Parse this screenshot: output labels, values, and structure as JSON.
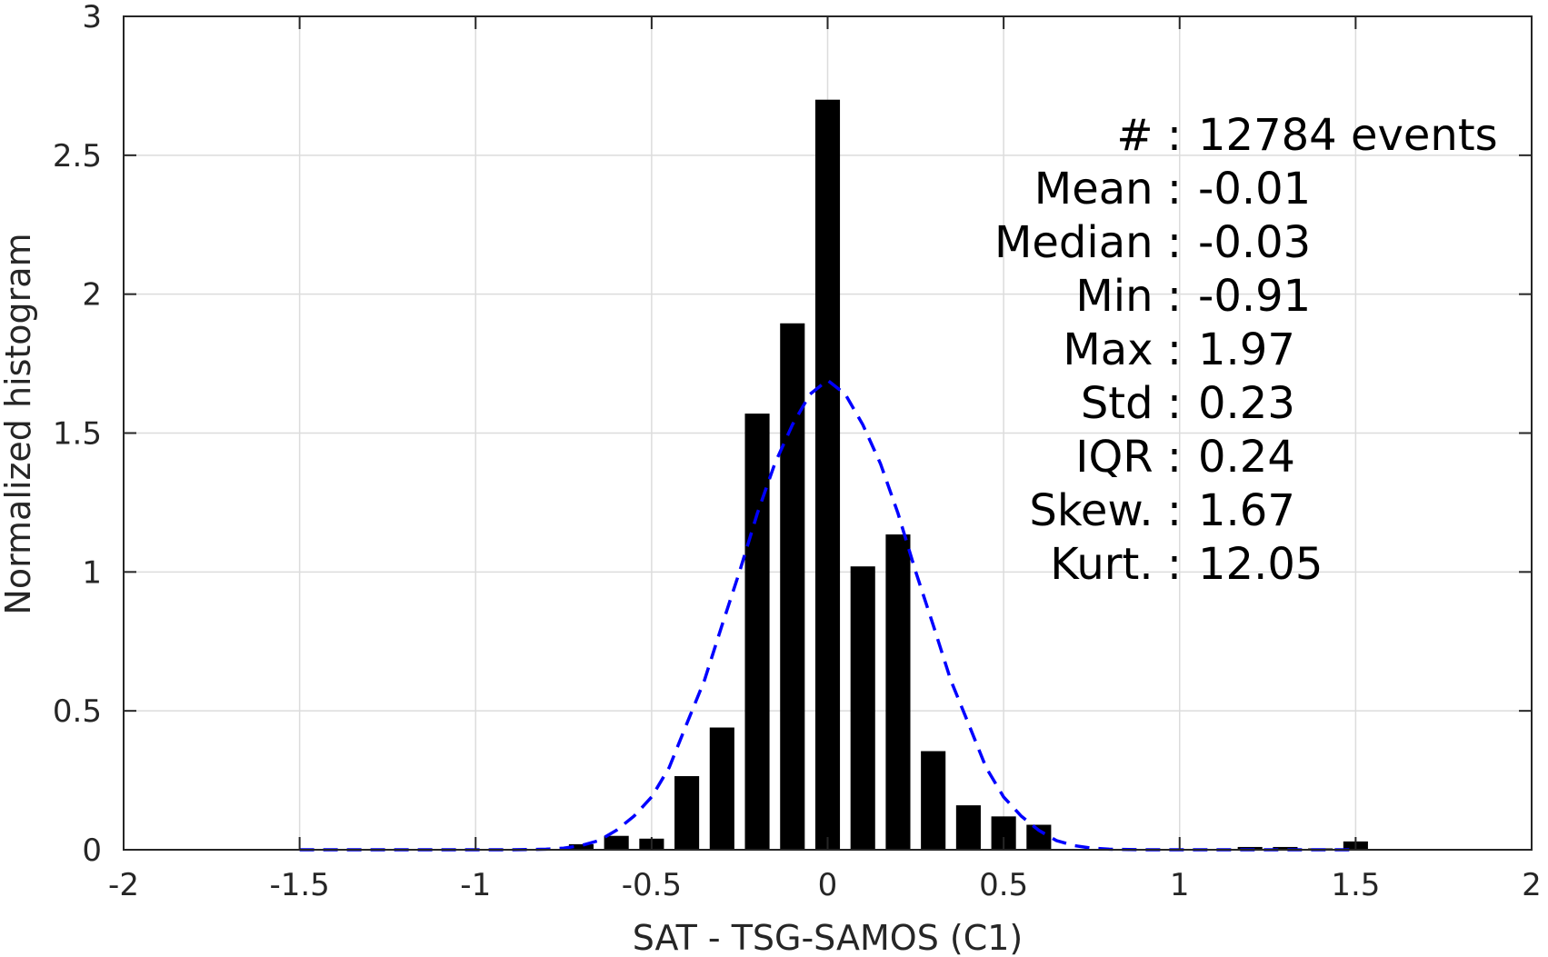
{
  "chart_data": {
    "type": "bar",
    "xlabel": "SAT - TSG-SAMOS (C1)",
    "ylabel": "Normalized histogram",
    "xlim": [
      -2,
      2
    ],
    "ylim": [
      0,
      3
    ],
    "xticks": [
      -2,
      -1.5,
      -1,
      -0.5,
      0,
      0.5,
      1,
      1.5,
      2
    ],
    "xtick_labels": [
      "-2",
      "-1.5",
      "-1",
      "-0.5",
      "0",
      "0.5",
      "1",
      "1.5",
      "2"
    ],
    "yticks": [
      0,
      0.5,
      1,
      1.5,
      2,
      2.5,
      3
    ],
    "ytick_labels": [
      "0",
      "0.5",
      "1",
      "1.5",
      "2",
      "2.5",
      "3"
    ],
    "grid": true,
    "bar_color": "#000000",
    "bar_width": 0.07,
    "bars": {
      "x": [
        -1.5,
        -1.4,
        -1.3,
        -1.2,
        -1.1,
        -1.0,
        -0.9,
        -0.8,
        -0.7,
        -0.6,
        -0.5,
        -0.4,
        -0.3,
        -0.2,
        -0.1,
        0.0,
        0.1,
        0.2,
        0.3,
        0.4,
        0.5,
        0.6,
        0.7,
        0.8,
        0.9,
        1.0,
        1.1,
        1.2,
        1.3,
        1.4,
        1.5
      ],
      "y": [
        0,
        0,
        0,
        0,
        0,
        0,
        0,
        0.002,
        0.02,
        0.05,
        0.04,
        0.265,
        0.44,
        1.57,
        1.895,
        2.7,
        1.02,
        1.135,
        0.355,
        0.16,
        0.12,
        0.09,
        0,
        0.002,
        0.002,
        0,
        0.003,
        0.01,
        0.01,
        0.005,
        0.03
      ]
    },
    "fit": {
      "name": "Gaussian fit",
      "color": "#0000ff",
      "style": "dashed",
      "x": [
        -1.5,
        -1.4,
        -1.3,
        -1.2,
        -1.1,
        -1.0,
        -0.9,
        -0.8,
        -0.75,
        -0.7,
        -0.65,
        -0.6,
        -0.55,
        -0.5,
        -0.45,
        -0.4,
        -0.35,
        -0.3,
        -0.25,
        -0.2,
        -0.15,
        -0.1,
        -0.05,
        0.0,
        0.05,
        0.1,
        0.15,
        0.2,
        0.25,
        0.3,
        0.35,
        0.4,
        0.45,
        0.5,
        0.55,
        0.6,
        0.65,
        0.7,
        0.75,
        0.8,
        0.9,
        1.0,
        1.1,
        1.2,
        1.3,
        1.4,
        1.5
      ],
      "y": [
        0,
        0,
        0,
        0,
        0,
        0,
        0,
        0.002,
        0.006,
        0.015,
        0.033,
        0.07,
        0.121,
        0.19,
        0.296,
        0.454,
        0.61,
        0.808,
        1.002,
        1.21,
        1.39,
        1.53,
        1.64,
        1.69,
        1.64,
        1.53,
        1.39,
        1.21,
        1.002,
        0.808,
        0.61,
        0.454,
        0.296,
        0.19,
        0.121,
        0.07,
        0.033,
        0.015,
        0.006,
        0.002,
        0,
        0,
        0,
        0,
        0,
        0,
        0
      ]
    },
    "annotations": [
      {
        "label": "#  :",
        "value": "12784 events"
      },
      {
        "label": "Mean :",
        "value": "-0.01"
      },
      {
        "label": "Median :",
        "value": "-0.03"
      },
      {
        "label": "Min :",
        "value": "-0.91"
      },
      {
        "label": "Max :",
        "value": "1.97"
      },
      {
        "label": "Std :",
        "value": "0.23"
      },
      {
        "label": "IQR :",
        "value": "0.24"
      },
      {
        "label": "Skew. :",
        "value": "1.67"
      },
      {
        "label": "Kurt. :",
        "value": "12.05"
      }
    ]
  }
}
